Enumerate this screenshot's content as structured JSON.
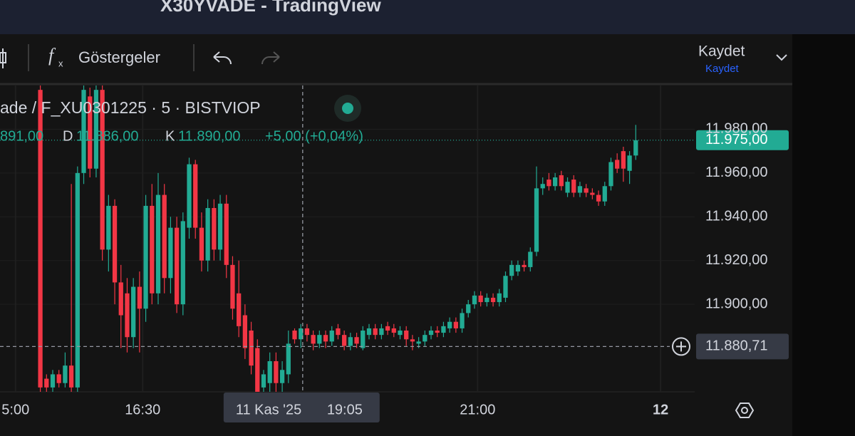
{
  "window_title": "X30YVADE - TradingView",
  "toolbar": {
    "indicators": "Göstergeler",
    "save": "Kaydet",
    "save_sub": "Kaydet"
  },
  "legend": {
    "symbol": "ade / F_XU0301225 · 5 · BISTVIOP",
    "open": "891,00",
    "low_key": "D",
    "low": "11.886,00",
    "close_key": "K",
    "close": "11.890,00",
    "change": "+5,00 (+0,04%)"
  },
  "chart_data": {
    "type": "candlestick",
    "up_color": "#22ab94",
    "down_color": "#f23645",
    "grid": true,
    "ohlc": [
      [
        11998,
        12000,
        11860,
        11862
      ],
      [
        11866,
        11868,
        11860,
        11862
      ],
      [
        11862,
        11870,
        11860,
        11868
      ],
      [
        11868,
        11870,
        11862,
        11864
      ],
      [
        11864,
        11878,
        11862,
        11872
      ],
      [
        11872,
        11955,
        11860,
        11862
      ],
      [
        11862,
        11963,
        11860,
        11960
      ],
      [
        11960,
        12000,
        11955,
        11998
      ],
      [
        11995,
        11999,
        11958,
        11962
      ],
      [
        11962,
        12000,
        11958,
        11998
      ],
      [
        11998,
        12000,
        11920,
        11925
      ],
      [
        11925,
        11950,
        11915,
        11945
      ],
      [
        11945,
        11948,
        11900,
        11910
      ],
      [
        11910,
        11918,
        11880,
        11895
      ],
      [
        11905,
        11912,
        11878,
        11885
      ],
      [
        11885,
        11912,
        11880,
        11908
      ],
      [
        11908,
        11915,
        11878,
        11898
      ],
      [
        11898,
        11950,
        11892,
        11945
      ],
      [
        11945,
        11955,
        11900,
        11905
      ],
      [
        11905,
        11960,
        11900,
        11950
      ],
      [
        11950,
        11955,
        11905,
        11912
      ],
      [
        11912,
        11940,
        11905,
        11935
      ],
      [
        11935,
        11940,
        11896,
        11900
      ],
      [
        11900,
        11942,
        11895,
        11938
      ],
      [
        11935,
        11967,
        11930,
        11964
      ],
      [
        11964,
        11966,
        11930,
        11935
      ],
      [
        11935,
        11942,
        11915,
        11920
      ],
      [
        11920,
        11948,
        11915,
        11944
      ],
      [
        11944,
        11948,
        11920,
        11925
      ],
      [
        11925,
        11950,
        11920,
        11946
      ],
      [
        11946,
        11950,
        11912,
        11918
      ],
      [
        11918,
        11922,
        11893,
        11898
      ],
      [
        11905,
        11920,
        11885,
        11890
      ],
      [
        11895,
        11900,
        11875,
        11880
      ],
      [
        11888,
        11892,
        11868,
        11872
      ],
      [
        11880,
        11884,
        11860,
        11860
      ],
      [
        11862,
        11870,
        11860,
        11868
      ],
      [
        11864,
        11878,
        11860,
        11874
      ],
      [
        11874,
        11878,
        11860,
        11864
      ],
      [
        11864,
        11874,
        11860,
        11870
      ],
      [
        11868,
        11888,
        11864,
        11882
      ],
      [
        11888,
        11889,
        11882,
        11884
      ],
      [
        11884,
        11891,
        11880,
        11889
      ],
      [
        11889,
        11891,
        11883,
        11886
      ],
      [
        11886,
        11888,
        11879,
        11882
      ],
      [
        11882,
        11888,
        11880,
        11886
      ],
      [
        11886,
        11888,
        11880,
        11883
      ],
      [
        11883,
        11890,
        11881,
        11888
      ],
      [
        11889,
        11891,
        11884,
        11886
      ],
      [
        11886,
        11888,
        11879,
        11881
      ],
      [
        11881,
        11887,
        11879,
        11885
      ],
      [
        11885,
        11887,
        11880,
        11882
      ],
      [
        11880,
        11890,
        11879,
        11888
      ],
      [
        11886,
        11891,
        11884,
        11889
      ],
      [
        11889,
        11891,
        11884,
        11886
      ],
      [
        11886,
        11891,
        11884,
        11889
      ],
      [
        11890,
        11892,
        11886,
        11888
      ],
      [
        11889,
        11891,
        11885,
        11887
      ],
      [
        11886,
        11890,
        11884,
        11888
      ],
      [
        11888,
        11890,
        11881,
        11884
      ],
      [
        11884,
        11886,
        11879,
        11883
      ],
      [
        11882,
        11885,
        11880,
        11883
      ],
      [
        11883,
        11888,
        11881,
        11886
      ],
      [
        11886,
        11890,
        11884,
        11888
      ],
      [
        11888,
        11890,
        11885,
        11887
      ],
      [
        11887,
        11892,
        11885,
        11890
      ],
      [
        11889,
        11894,
        11887,
        11892
      ],
      [
        11892,
        11894,
        11887,
        11889
      ],
      [
        11889,
        11898,
        11887,
        11896
      ],
      [
        11896,
        11902,
        11894,
        11900
      ],
      [
        11900,
        11906,
        11898,
        11904
      ],
      [
        11904,
        11906,
        11899,
        11901
      ],
      [
        11901,
        11905,
        11899,
        11903
      ],
      [
        11903,
        11905,
        11899,
        11901
      ],
      [
        11901,
        11907,
        11899,
        11905
      ],
      [
        11903,
        11915,
        11901,
        11913
      ],
      [
        11913,
        11920,
        11911,
        11918
      ],
      [
        11915,
        11920,
        11913,
        11918
      ],
      [
        11918,
        11920,
        11915,
        11917
      ],
      [
        11917,
        11926,
        11915,
        11924
      ],
      [
        11924,
        11963,
        11922,
        11953
      ],
      [
        11953,
        11958,
        11950,
        11955
      ],
      [
        11957,
        11960,
        11952,
        11954
      ],
      [
        11954,
        11960,
        11952,
        11958
      ],
      [
        11959,
        11961,
        11952,
        11954
      ],
      [
        11951,
        11958,
        11949,
        11956
      ],
      [
        11957,
        11959,
        11949,
        11951
      ],
      [
        11951,
        11956,
        11949,
        11954
      ],
      [
        11953,
        11955,
        11949,
        11951
      ],
      [
        11951,
        11953,
        11948,
        11950
      ],
      [
        11950,
        11952,
        11945,
        11947
      ],
      [
        11947,
        11956,
        11945,
        11954
      ],
      [
        11954,
        11967,
        11952,
        11965
      ],
      [
        11966,
        11969,
        11960,
        11962
      ],
      [
        11970,
        11972,
        11956,
        11962
      ],
      [
        11961,
        11970,
        11955,
        11968
      ],
      [
        11968,
        11982,
        11966,
        11975
      ]
    ],
    "ylim": [
      11860,
      12000
    ],
    "yticks": [
      {
        "value": 11900,
        "label": "11.900,00"
      },
      {
        "value": 11920,
        "label": "11.920,00"
      },
      {
        "value": 11940,
        "label": "11.940,00"
      },
      {
        "value": 11960,
        "label": "11.960,00"
      },
      {
        "value": 11980,
        "label": "11.980,00"
      }
    ],
    "xlim": [
      -6.5,
      105.5
    ],
    "xticks": [
      {
        "value": -4,
        "label": "5:00"
      },
      {
        "value": 16.5,
        "label": "16:30"
      },
      {
        "value": 70.5,
        "label": "21:00"
      },
      {
        "value": 100,
        "label": "12"
      }
    ],
    "last_price": {
      "value": 11975,
      "label": "11.975,00"
    },
    "crosshair": {
      "x": 42.3,
      "y": {
        "value": 11880.71,
        "label": "11.880,71"
      },
      "date": "11 Kas '25",
      "time": "19:05"
    }
  }
}
